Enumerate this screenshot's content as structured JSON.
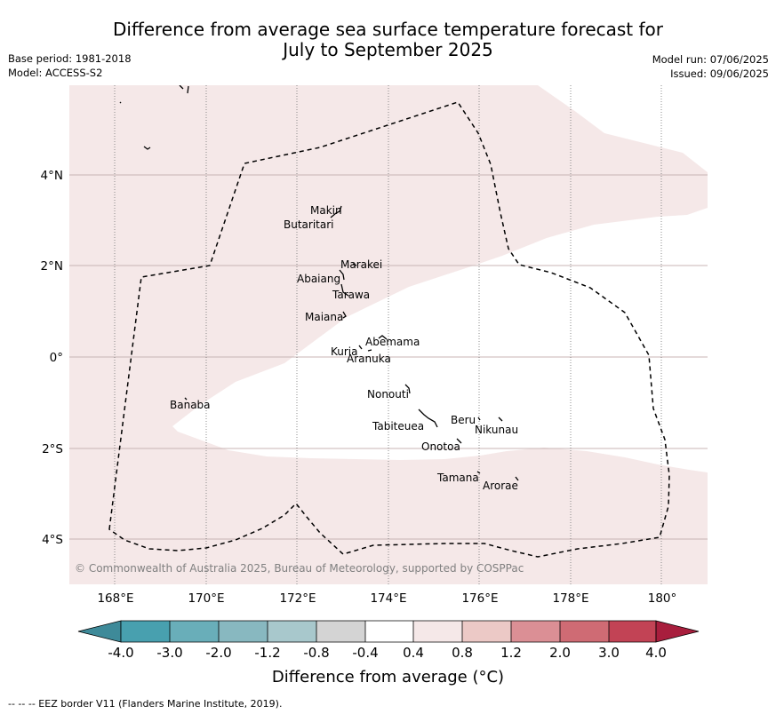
{
  "title_line1": "Difference from average sea surface temperature forecast for",
  "title_line2": "July to September 2025",
  "meta_left": [
    "Base period: 1981-2018",
    "Model: ACCESS-S2"
  ],
  "meta_right": [
    "Model run: 07/06/2025",
    "Issued: 09/06/2025"
  ],
  "copyright": "© Commonwealth of Australia 2025, Bureau of Meteorology, supported by COSPPac",
  "x_ticks": [
    "168°E",
    "170°E",
    "172°E",
    "174°E",
    "176°E",
    "178°E",
    "180°"
  ],
  "y_ticks": [
    "4°N",
    "2°N",
    "0°",
    "2°S",
    "4°S"
  ],
  "places": [
    "Makin",
    "Butaritari",
    "Marakei",
    "Abaiang",
    "Tarawa",
    "Maiana",
    "Abemama",
    "Kuria",
    "Aranuka",
    "Nonouti",
    "Banaba",
    "Beru",
    "Nikunau",
    "Tabiteuea",
    "Onotoa",
    "Tamana",
    "Arorae"
  ],
  "colorbar": {
    "labels": [
      "-4.0",
      "-3.0",
      "-2.0",
      "-1.2",
      "-0.8",
      "-0.4",
      "0.4",
      "0.8",
      "1.2",
      "2.0",
      "3.0",
      "4.0"
    ],
    "colors": [
      "#3e8a99",
      "#48a0af",
      "#69aeb9",
      "#88b8c0",
      "#a8c8cc",
      "#d4d4d4",
      "#ffffff",
      "#f5e8e8",
      "#ecc9c6",
      "#db8f95",
      "#cf6b74",
      "#c24355",
      "#a81e3d"
    ],
    "title": "Difference from average (°C)"
  },
  "colors": {
    "land_fill": "#f5e8e8",
    "grid": "#c8b4b4",
    "eez_border": "#000000"
  },
  "footer": "--  --  -- EEZ border V11 (Flanders Marine Institute, 2019)."
}
